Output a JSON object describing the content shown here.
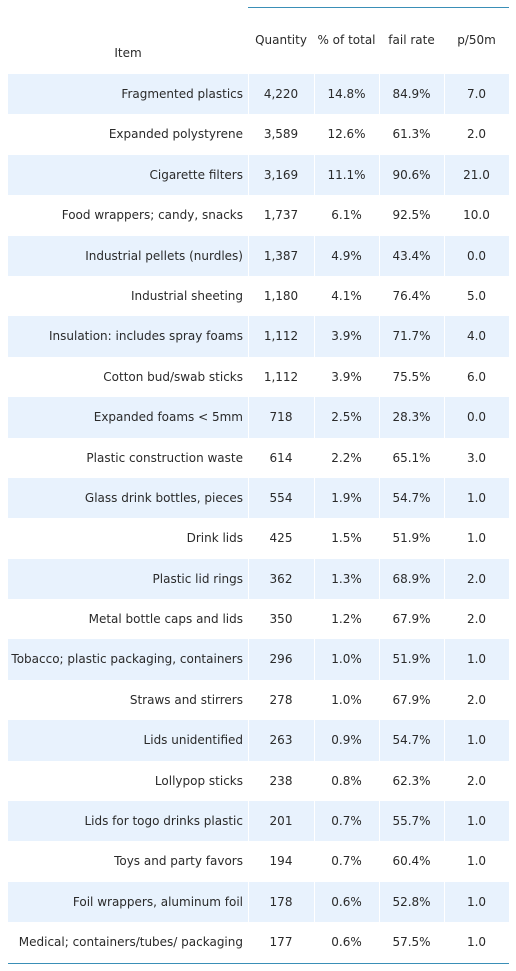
{
  "chart_data": {
    "type": "table",
    "columns": [
      "Item",
      "Quantity",
      "% of total",
      "fail rate",
      "p/50m"
    ],
    "rows": [
      [
        "Fragmented plastics",
        "4,220",
        "14.8%",
        "84.9%",
        "7.0"
      ],
      [
        "Expanded polystyrene",
        "3,589",
        "12.6%",
        "61.3%",
        "2.0"
      ],
      [
        "Cigarette filters",
        "3,169",
        "11.1%",
        "90.6%",
        "21.0"
      ],
      [
        "Food wrappers; candy, snacks",
        "1,737",
        "6.1%",
        "92.5%",
        "10.0"
      ],
      [
        "Industrial pellets (nurdles)",
        "1,387",
        "4.9%",
        "43.4%",
        "0.0"
      ],
      [
        "Industrial sheeting",
        "1,180",
        "4.1%",
        "76.4%",
        "5.0"
      ],
      [
        "Insulation: includes spray foams",
        "1,112",
        "3.9%",
        "71.7%",
        "4.0"
      ],
      [
        "Cotton bud/swab sticks",
        "1,112",
        "3.9%",
        "75.5%",
        "6.0"
      ],
      [
        "Expanded foams < 5mm",
        "718",
        "2.5%",
        "28.3%",
        "0.0"
      ],
      [
        "Plastic construction waste",
        "614",
        "2.2%",
        "65.1%",
        "3.0"
      ],
      [
        "Glass drink bottles, pieces",
        "554",
        "1.9%",
        "54.7%",
        "1.0"
      ],
      [
        "Drink lids",
        "425",
        "1.5%",
        "51.9%",
        "1.0"
      ],
      [
        "Plastic lid rings",
        "362",
        "1.3%",
        "68.9%",
        "2.0"
      ],
      [
        "Metal bottle caps and lids",
        "350",
        "1.2%",
        "67.9%",
        "2.0"
      ],
      [
        "Tobacco; plastic packaging, containers",
        "296",
        "1.0%",
        "51.9%",
        "1.0"
      ],
      [
        "Straws and stirrers",
        "278",
        "1.0%",
        "67.9%",
        "2.0"
      ],
      [
        "Lids unidentified",
        "263",
        "0.9%",
        "54.7%",
        "1.0"
      ],
      [
        "Lollypop sticks",
        "238",
        "0.8%",
        "62.3%",
        "2.0"
      ],
      [
        "Lids for togo drinks plastic",
        "201",
        "0.7%",
        "55.7%",
        "1.0"
      ],
      [
        "Toys and party favors",
        "194",
        "0.7%",
        "60.4%",
        "1.0"
      ],
      [
        "Foil wrappers, aluminum foil",
        "178",
        "0.6%",
        "52.8%",
        "1.0"
      ],
      [
        "Medical; containers/tubes/ packaging",
        "177",
        "0.6%",
        "57.5%",
        "1.0"
      ]
    ],
    "row_shading": "alternating",
    "colors": {
      "shaded_row": "#e8f2fd",
      "rule": "#3a8fb7",
      "text": "#2a2a2a"
    }
  }
}
